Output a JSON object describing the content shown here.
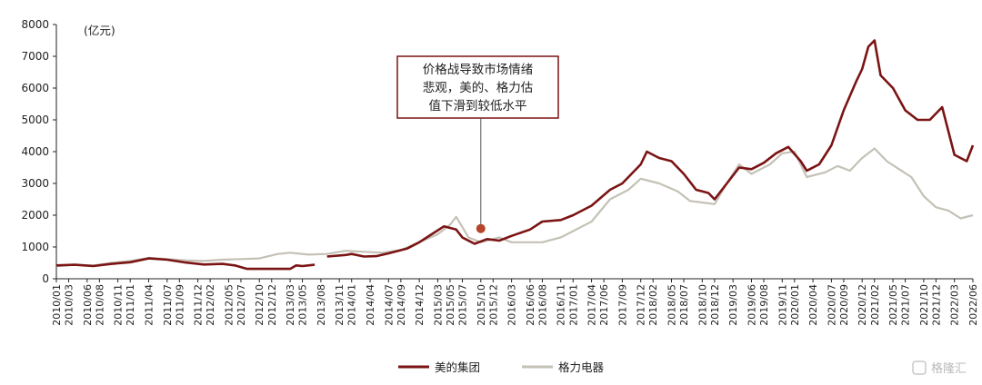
{
  "chart_data": {
    "type": "line",
    "ylabel": "(亿元)",
    "ylim": [
      0,
      8000
    ],
    "yticks": [
      0,
      1000,
      2000,
      3000,
      4000,
      5000,
      6000,
      7000,
      8000
    ],
    "x_tick_labels": [
      "2010/01",
      "2010/03",
      "2010/06",
      "2010/08",
      "2010/11",
      "2011/01",
      "2011/04",
      "2011/07",
      "2011/09",
      "2011/12",
      "2012/02",
      "2012/05",
      "2012/07",
      "2012/10",
      "2012/12",
      "2013/03",
      "2013/05",
      "2013/08",
      "2013/11",
      "2014/01",
      "2014/04",
      "2014/07",
      "2014/09",
      "2014/12",
      "2015/03",
      "2015/05",
      "2015/07",
      "2015/10",
      "2015/12",
      "2016/03",
      "2016/06",
      "2016/08",
      "2016/11",
      "2017/01",
      "2017/04",
      "2017/06",
      "2017/09",
      "2017/12",
      "2018/02",
      "2018/05",
      "2018/07",
      "2018/10",
      "2018/12",
      "2019/03",
      "2019/06",
      "2019/08",
      "2019/11",
      "2020/01",
      "2020/04",
      "2020/07",
      "2020/09",
      "2020/12",
      "2021/02",
      "2021/05",
      "2021/07",
      "2021/10",
      "2021/12",
      "2022/03",
      "2022/06"
    ],
    "series": [
      {
        "name": "美的集团",
        "color": "#7b1414",
        "points": [
          [
            "2010/01",
            420
          ],
          [
            "2010/04",
            440
          ],
          [
            "2010/07",
            400
          ],
          [
            "2010/10",
            470
          ],
          [
            "2011/01",
            520
          ],
          [
            "2011/04",
            640
          ],
          [
            "2011/07",
            600
          ],
          [
            "2011/10",
            510
          ],
          [
            "2012/01",
            450
          ],
          [
            "2012/04",
            470
          ],
          [
            "2012/06",
            420
          ],
          [
            "2012/08",
            310
          ],
          [
            "2012/11",
            310
          ],
          [
            "2013/02",
            310
          ],
          [
            "2013/03",
            310
          ],
          [
            "2013/04",
            420
          ],
          [
            "2013/05",
            400
          ],
          [
            "2013/07",
            440
          ],
          null,
          [
            "2013/09",
            700
          ],
          [
            "2013/12",
            750
          ],
          [
            "2014/01",
            780
          ],
          [
            "2014/03",
            700
          ],
          [
            "2014/05",
            710
          ],
          [
            "2014/07",
            800
          ],
          [
            "2014/10",
            950
          ],
          [
            "2014/12",
            1150
          ],
          [
            "2015/02",
            1400
          ],
          [
            "2015/04",
            1650
          ],
          [
            "2015/06",
            1550
          ],
          [
            "2015/07",
            1300
          ],
          [
            "2015/09",
            1100
          ],
          [
            "2015/11",
            1250
          ],
          [
            "2016/01",
            1200
          ],
          [
            "2016/03",
            1350
          ],
          [
            "2016/06",
            1550
          ],
          [
            "2016/08",
            1800
          ],
          [
            "2016/11",
            1850
          ],
          [
            "2017/01",
            2000
          ],
          [
            "2017/04",
            2300
          ],
          [
            "2017/07",
            2800
          ],
          [
            "2017/09",
            3000
          ],
          [
            "2017/12",
            3600
          ],
          [
            "2018/01",
            4000
          ],
          [
            "2018/03",
            3800
          ],
          [
            "2018/05",
            3700
          ],
          [
            "2018/07",
            3300
          ],
          [
            "2018/09",
            2800
          ],
          [
            "2018/11",
            2700
          ],
          [
            "2018/12",
            2500
          ],
          [
            "2019/02",
            3000
          ],
          [
            "2019/04",
            3500
          ],
          [
            "2019/06",
            3450
          ],
          [
            "2019/08",
            3650
          ],
          [
            "2019/10",
            3950
          ],
          [
            "2019/12",
            4150
          ],
          [
            "2020/02",
            3700
          ],
          [
            "2020/03",
            3400
          ],
          [
            "2020/05",
            3600
          ],
          [
            "2020/07",
            4200
          ],
          [
            "2020/09",
            5300
          ],
          [
            "2020/11",
            6200
          ],
          [
            "2020/12",
            6600
          ],
          [
            "2021/01",
            7300
          ],
          [
            "2021/02",
            7500
          ],
          [
            "2021/03",
            6400
          ],
          [
            "2021/05",
            6000
          ],
          [
            "2021/07",
            5300
          ],
          [
            "2021/09",
            5000
          ],
          [
            "2021/11",
            5000
          ],
          [
            "2022/01",
            5400
          ],
          [
            "2022/03",
            3900
          ],
          [
            "2022/05",
            3700
          ],
          [
            "2022/06",
            4200
          ]
        ]
      },
      {
        "name": "格力电器",
        "color": "#c4c1b6",
        "points": [
          [
            "2010/01",
            400
          ],
          [
            "2010/04",
            440
          ],
          [
            "2010/07",
            420
          ],
          [
            "2010/10",
            500
          ],
          [
            "2011/01",
            560
          ],
          [
            "2011/04",
            660
          ],
          [
            "2011/07",
            620
          ],
          [
            "2011/10",
            580
          ],
          [
            "2012/01",
            560
          ],
          [
            "2012/04",
            600
          ],
          [
            "2012/07",
            620
          ],
          [
            "2012/10",
            640
          ],
          [
            "2013/01",
            780
          ],
          [
            "2013/03",
            820
          ],
          [
            "2013/06",
            760
          ],
          [
            "2013/09",
            780
          ],
          [
            "2013/12",
            880
          ],
          [
            "2014/03",
            850
          ],
          [
            "2014/06",
            820
          ],
          [
            "2014/09",
            900
          ],
          [
            "2014/12",
            1150
          ],
          [
            "2015/03",
            1400
          ],
          [
            "2015/05",
            1700
          ],
          [
            "2015/06",
            1950
          ],
          [
            "2015/08",
            1300
          ],
          [
            "2015/10",
            1150
          ],
          [
            "2015/12",
            1250
          ],
          [
            "2016/01",
            1300
          ],
          [
            "2016/03",
            1150
          ],
          [
            "2016/06",
            1150
          ],
          [
            "2016/08",
            1150
          ],
          [
            "2016/11",
            1300
          ],
          [
            "2017/01",
            1500
          ],
          [
            "2017/04",
            1800
          ],
          [
            "2017/07",
            2500
          ],
          [
            "2017/10",
            2800
          ],
          [
            "2017/12",
            3150
          ],
          [
            "2018/01",
            3100
          ],
          [
            "2018/03",
            3000
          ],
          [
            "2018/06",
            2750
          ],
          [
            "2018/08",
            2450
          ],
          [
            "2018/10",
            2400
          ],
          [
            "2018/12",
            2350
          ],
          [
            "2019/02",
            3000
          ],
          [
            "2019/04",
            3600
          ],
          [
            "2019/06",
            3300
          ],
          [
            "2019/09",
            3600
          ],
          [
            "2019/11",
            3950
          ],
          [
            "2020/01",
            4000
          ],
          [
            "2020/03",
            3200
          ],
          [
            "2020/06",
            3350
          ],
          [
            "2020/08",
            3550
          ],
          [
            "2020/10",
            3400
          ],
          [
            "2020/12",
            3800
          ],
          [
            "2021/02",
            4100
          ],
          [
            "2021/04",
            3700
          ],
          [
            "2021/06",
            3450
          ],
          [
            "2021/08",
            3200
          ],
          [
            "2021/10",
            2600
          ],
          [
            "2021/12",
            2250
          ],
          [
            "2022/02",
            2150
          ],
          [
            "2022/04",
            1900
          ],
          [
            "2022/06",
            2000
          ]
        ]
      }
    ],
    "annotations": [
      {
        "lines": [
          "价格战导致市场情绪",
          "悲观，美的、格力估",
          "值下滑到较低水平"
        ],
        "target": [
          "2015/10",
          1580
        ],
        "marker_color": "#b5452b",
        "box_border_color": "#7b1414"
      }
    ],
    "legend": {
      "placement": "bottom-center"
    },
    "grid": false
  },
  "watermark": {
    "text": "格隆汇"
  }
}
